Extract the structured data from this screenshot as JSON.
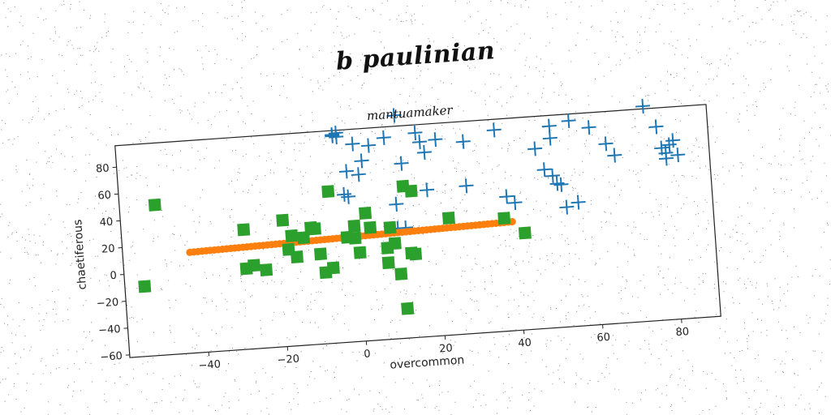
{
  "figure": {
    "suptitle": "b paulinian"
  },
  "chart_data": {
    "type": "scatter",
    "title": "mantuamaker",
    "xlabel": "overcommon",
    "ylabel": "chaetiferous",
    "xlim": [
      -60,
      90
    ],
    "ylim": [
      -62,
      96
    ],
    "xticks": [
      -40,
      -20,
      0,
      20,
      40,
      60,
      80
    ],
    "yticks": [
      -60,
      -40,
      -20,
      0,
      20,
      40,
      60,
      80
    ],
    "grid": false,
    "colors": {
      "blue": "#1f77b4",
      "orange": "#ff7f0e",
      "green": "#2ca02c"
    },
    "series": [
      {
        "marker": "plus",
        "color": "#1f77b4",
        "points": [
          [
            -5,
            93
          ],
          [
            -5,
            92
          ],
          [
            -4,
            94
          ],
          [
            -4,
            91
          ],
          [
            0,
            85
          ],
          [
            4,
            83
          ],
          [
            8,
            88
          ],
          [
            11,
            104
          ],
          [
            -2,
            65
          ],
          [
            1,
            62
          ],
          [
            2,
            72
          ],
          [
            -3,
            48
          ],
          [
            -2,
            46
          ],
          [
            16,
            90
          ],
          [
            17,
            83
          ],
          [
            21,
            84
          ],
          [
            12,
            68
          ],
          [
            18,
            75
          ],
          [
            28,
            81
          ],
          [
            36,
            88
          ],
          [
            28,
            48
          ],
          [
            18,
            47
          ],
          [
            10,
            38
          ],
          [
            10,
            20
          ],
          [
            12,
            20
          ],
          [
            38,
            38
          ],
          [
            40,
            33
          ],
          [
            46,
            72
          ],
          [
            50,
            88
          ],
          [
            50,
            79
          ],
          [
            55,
            91
          ],
          [
            60,
            85
          ],
          [
            64,
            72
          ],
          [
            48,
            56
          ],
          [
            50,
            51
          ],
          [
            51,
            45
          ],
          [
            52,
            44
          ],
          [
            53,
            27
          ],
          [
            56,
            30
          ],
          [
            66,
            63
          ],
          [
            74,
            98
          ],
          [
            77,
            82
          ],
          [
            78,
            66
          ],
          [
            79,
            62
          ],
          [
            79,
            58
          ],
          [
            80,
            68
          ],
          [
            81,
            71
          ],
          [
            82,
            60
          ]
        ]
      },
      {
        "marker": "circle",
        "color": "#ff7f0e",
        "line": {
          "x0": -43,
          "y0": 13,
          "x1": 39,
          "y1": 19,
          "n": 80
        }
      },
      {
        "marker": "square",
        "color": "#2ca02c",
        "points": [
          [
            -51,
            50
          ],
          [
            -55,
            -10
          ],
          [
            -29,
            27
          ],
          [
            -29,
            -2
          ],
          [
            -27,
            0
          ],
          [
            -24,
            -4
          ],
          [
            -19,
            32
          ],
          [
            -17,
            20
          ],
          [
            -18,
            10
          ],
          [
            -16,
            4
          ],
          [
            -14,
            18
          ],
          [
            -11,
            24
          ],
          [
            -12,
            25
          ],
          [
            -10,
            5
          ],
          [
            -9,
            -9
          ],
          [
            -7,
            -6
          ],
          [
            -7,
            51
          ],
          [
            -3,
            16
          ],
          [
            -1,
            24
          ],
          [
            -1,
            15
          ],
          [
            0,
            4
          ],
          [
            2,
            33
          ],
          [
            3,
            22
          ],
          [
            7,
            6
          ],
          [
            7,
            -5
          ],
          [
            9,
            9
          ],
          [
            10,
            -14
          ],
          [
            11,
            -40
          ],
          [
            12,
            51
          ],
          [
            14,
            47
          ],
          [
            13,
            1
          ],
          [
            14,
            0
          ],
          [
            23,
            25
          ],
          [
            37,
            22
          ],
          [
            42,
            10
          ],
          [
            8,
            21
          ]
        ]
      }
    ]
  }
}
